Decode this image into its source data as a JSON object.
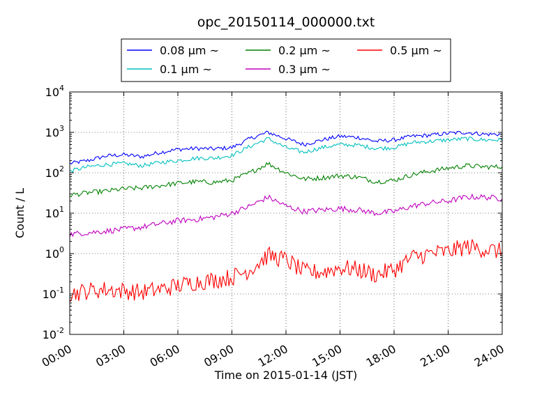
{
  "chart_data": {
    "type": "line",
    "title": "opc_20150114_000000.txt",
    "xlabel": "Time on 2015-01-14 (JST)",
    "ylabel": "Count / L",
    "xlim": [
      "2015-01-14 00:00",
      "2015-01-15 00:00"
    ],
    "ylim": [
      0.01,
      10000
    ],
    "yscale": "log",
    "grid": true,
    "legend_placement": "top-center, above plot",
    "x_tick_labels": [
      "00:00",
      "03:00",
      "06:00",
      "09:00",
      "12:00",
      "15:00",
      "18:00",
      "21:00",
      "24:00"
    ],
    "y_tick_labels": [
      "10-2",
      "10-1",
      "100",
      "101",
      "102",
      "103",
      "104"
    ],
    "x": [
      "00:00",
      "01:00",
      "02:00",
      "03:00",
      "04:00",
      "05:00",
      "06:00",
      "07:00",
      "08:00",
      "09:00",
      "10:00",
      "11:00",
      "12:00",
      "13:00",
      "14:00",
      "15:00",
      "16:00",
      "17:00",
      "18:00",
      "19:00",
      "20:00",
      "21:00",
      "22:00",
      "23:00",
      "24:00"
    ],
    "series": [
      {
        "name": "0.08 μm ~",
        "color": "#0000ff",
        "values": [
          170,
          200,
          260,
          280,
          250,
          320,
          380,
          400,
          390,
          420,
          700,
          1000,
          700,
          500,
          650,
          800,
          750,
          600,
          650,
          800,
          850,
          950,
          1000,
          900,
          900
        ]
      },
      {
        "name": "0.1 μm ~",
        "color": "#00bfbf",
        "values": [
          110,
          140,
          160,
          170,
          150,
          180,
          200,
          230,
          230,
          270,
          450,
          700,
          420,
          320,
          420,
          500,
          480,
          400,
          420,
          560,
          600,
          650,
          700,
          650,
          650
        ]
      },
      {
        "name": "0.2 μm ~",
        "color": "#008000",
        "values": [
          28,
          32,
          35,
          40,
          42,
          48,
          55,
          60,
          58,
          65,
          100,
          170,
          100,
          70,
          75,
          85,
          78,
          60,
          65,
          90,
          110,
          130,
          150,
          140,
          140
        ]
      },
      {
        "name": "0.3 μm ~",
        "color": "#bf00bf",
        "values": [
          3,
          3.3,
          3.6,
          4,
          4.5,
          5.5,
          6.5,
          7,
          8,
          10,
          15,
          25,
          15,
          11,
          12,
          13,
          12,
          10,
          11,
          15,
          18,
          20,
          25,
          25,
          23
        ]
      },
      {
        "name": "0.5 μm ~",
        "color": "#ff0000",
        "values": [
          0.1,
          0.12,
          0.13,
          0.12,
          0.11,
          0.13,
          0.16,
          0.2,
          0.22,
          0.26,
          0.4,
          0.9,
          0.7,
          0.35,
          0.35,
          0.45,
          0.4,
          0.3,
          0.4,
          0.8,
          1.0,
          1.1,
          1.5,
          1.3,
          1.1
        ]
      }
    ]
  }
}
